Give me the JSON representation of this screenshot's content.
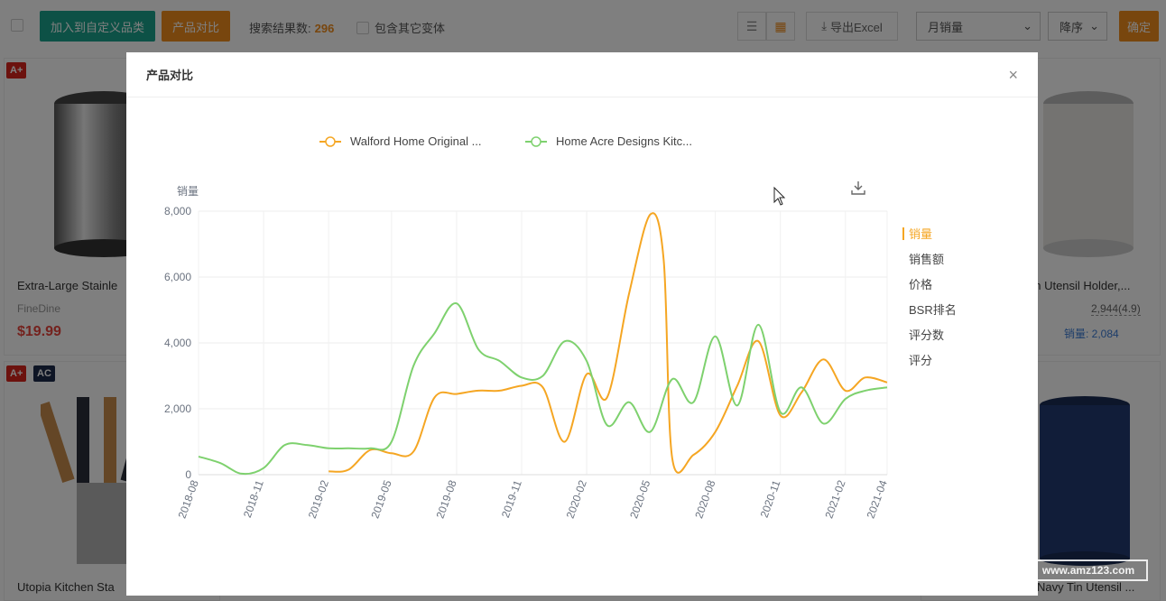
{
  "toolbar": {
    "add_category_label": "加入到自定义品类",
    "compare_label": "产品对比",
    "result_label": "搜索结果数:",
    "result_count": "296",
    "variant_label": "包含其它变体",
    "export_label": "导出Excel",
    "sort_field": "月销量",
    "sort_order": "降序",
    "confirm_label": "确定"
  },
  "products": {
    "p1": {
      "badge": "A+",
      "title": "Extra-Large Stainle",
      "brand": "FineDine",
      "price": "$19.99"
    },
    "p2": {
      "title": "en Utensil Holder,...",
      "rating": "2,944(4.9)",
      "sales": "销量: 2,084"
    },
    "p3": {
      "badge1": "A+",
      "badge2": "AC",
      "title": "Utopia Kitchen Sta"
    },
    "p4": {
      "title": "Navy Tin Utensil ..."
    }
  },
  "watermark": "www.amz123.com",
  "modal": {
    "title": "产品对比",
    "close_label": "×"
  },
  "chart_data": {
    "type": "line",
    "ylabel": "销量",
    "ylim": [
      0,
      8000
    ],
    "yticks": [
      "0",
      "2,000",
      "4,000",
      "6,000",
      "8,000"
    ],
    "x_range": [
      "2018-08",
      "2021-04"
    ],
    "xticks": [
      "2018-08",
      "2018-11",
      "2019-02",
      "2019-05",
      "2019-08",
      "2019-11",
      "2020-02",
      "2020-05",
      "2020-08",
      "2020-11",
      "2021-02",
      "2021-04"
    ],
    "grid": true,
    "legend_position": "top-center",
    "metric_options": [
      {
        "label": "销量",
        "active": true
      },
      {
        "label": "销售额",
        "active": false
      },
      {
        "label": "价格",
        "active": false
      },
      {
        "label": "BSR排名",
        "active": false
      },
      {
        "label": "评分数",
        "active": false
      },
      {
        "label": "评分",
        "active": false
      }
    ],
    "series": [
      {
        "name": "Walford Home Original ...",
        "color": "#f5a623",
        "points": [
          [
            "2019-02-01",
            100
          ],
          [
            "2019-03-01",
            150
          ],
          [
            "2019-04-01",
            750
          ],
          [
            "2019-05-01",
            650
          ],
          [
            "2019-06-01",
            700
          ],
          [
            "2019-07-01",
            2350
          ],
          [
            "2019-08-01",
            2450
          ],
          [
            "2019-09-01",
            2550
          ],
          [
            "2019-10-01",
            2550
          ],
          [
            "2019-11-01",
            2700
          ],
          [
            "2019-12-01",
            2650
          ],
          [
            "2020-01-01",
            1000
          ],
          [
            "2020-02-01",
            3050
          ],
          [
            "2020-03-01",
            2350
          ],
          [
            "2020-04-01",
            5500
          ],
          [
            "2020-05-01",
            7900
          ],
          [
            "2020-05-20",
            6500
          ],
          [
            "2020-06-01",
            500
          ],
          [
            "2020-07-01",
            600
          ],
          [
            "2020-08-01",
            1300
          ],
          [
            "2020-09-01",
            2700
          ],
          [
            "2020-10-01",
            4050
          ],
          [
            "2020-11-01",
            1800
          ],
          [
            "2020-12-01",
            2500
          ],
          [
            "2021-01-01",
            3500
          ],
          [
            "2021-02-01",
            2550
          ],
          [
            "2021-03-01",
            2950
          ],
          [
            "2021-04-01",
            2800
          ]
        ]
      },
      {
        "name": "Home Acre Designs Kitc...",
        "color": "#7ed16e",
        "points": [
          [
            "2018-08-01",
            550
          ],
          [
            "2018-09-01",
            350
          ],
          [
            "2018-10-01",
            30
          ],
          [
            "2018-11-01",
            200
          ],
          [
            "2018-12-01",
            900
          ],
          [
            "2019-01-01",
            900
          ],
          [
            "2019-02-01",
            800
          ],
          [
            "2019-03-01",
            800
          ],
          [
            "2019-04-01",
            800
          ],
          [
            "2019-05-01",
            1000
          ],
          [
            "2019-06-01",
            3300
          ],
          [
            "2019-07-01",
            4300
          ],
          [
            "2019-08-01",
            5200
          ],
          [
            "2019-09-01",
            3800
          ],
          [
            "2019-10-01",
            3450
          ],
          [
            "2019-11-01",
            2950
          ],
          [
            "2019-12-01",
            3000
          ],
          [
            "2020-01-01",
            4050
          ],
          [
            "2020-02-01",
            3450
          ],
          [
            "2020-03-01",
            1500
          ],
          [
            "2020-04-01",
            2200
          ],
          [
            "2020-05-01",
            1300
          ],
          [
            "2020-06-01",
            2900
          ],
          [
            "2020-07-01",
            2200
          ],
          [
            "2020-08-01",
            4200
          ],
          [
            "2020-09-01",
            2100
          ],
          [
            "2020-10-01",
            4550
          ],
          [
            "2020-11-01",
            1900
          ],
          [
            "2020-12-01",
            2650
          ],
          [
            "2021-01-01",
            1550
          ],
          [
            "2021-02-01",
            2300
          ],
          [
            "2021-03-01",
            2550
          ],
          [
            "2021-04-01",
            2650
          ]
        ]
      }
    ]
  }
}
